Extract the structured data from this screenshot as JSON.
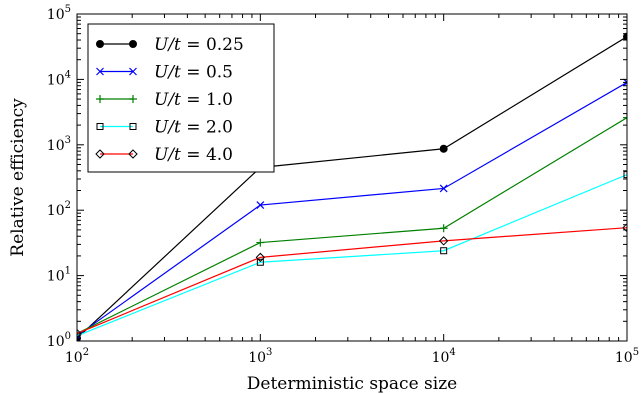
{
  "chart_data": {
    "type": "line",
    "xscale": "log",
    "yscale": "log",
    "xlim": [
      100,
      100000
    ],
    "ylim": [
      1,
      100000
    ],
    "xlabel": "Deterministic space size",
    "ylabel": "Relative efficiency",
    "x_ticks": [
      {
        "base": "10",
        "exp": "2",
        "value": 100
      },
      {
        "base": "10",
        "exp": "3",
        "value": 1000
      },
      {
        "base": "10",
        "exp": "4",
        "value": 10000
      },
      {
        "base": "10",
        "exp": "5",
        "value": 100000
      }
    ],
    "y_ticks": [
      {
        "base": "10",
        "exp": "0",
        "value": 1
      },
      {
        "base": "10",
        "exp": "1",
        "value": 10
      },
      {
        "base": "10",
        "exp": "2",
        "value": 100
      },
      {
        "base": "10",
        "exp": "3",
        "value": 1000
      },
      {
        "base": "10",
        "exp": "4",
        "value": 10000
      },
      {
        "base": "10",
        "exp": "5",
        "value": 100000
      }
    ],
    "grid": false,
    "legend_position": "top-left",
    "series": [
      {
        "name": "U/t = 0.25",
        "var": "U/t",
        "val": "0.25",
        "color": "#000000",
        "marker": "circle",
        "x": [
          100,
          1000,
          10000,
          100000
        ],
        "y": [
          1.1,
          450,
          870,
          45000
        ]
      },
      {
        "name": "U/t = 0.5",
        "var": "U/t",
        "val": "0.5",
        "color": "#0000ff",
        "marker": "x",
        "x": [
          100,
          1000,
          10000,
          100000
        ],
        "y": [
          1.2,
          120,
          215,
          9000
        ]
      },
      {
        "name": "U/t = 1.0",
        "var": "U/t",
        "val": "1.0",
        "color": "#008000",
        "marker": "plus",
        "x": [
          100,
          1000,
          10000,
          100000
        ],
        "y": [
          1.3,
          32,
          53,
          2600
        ]
      },
      {
        "name": "U/t = 2.0",
        "var": "U/t",
        "val": "2.0",
        "color": "#00ffff",
        "marker": "square",
        "x": [
          100,
          1000,
          10000,
          100000
        ],
        "y": [
          1.2,
          16,
          24,
          350
        ]
      },
      {
        "name": "U/t = 4.0",
        "var": "U/t",
        "val": "4.0",
        "color": "#ff0000",
        "marker": "diamond",
        "x": [
          100,
          1000,
          10000,
          100000
        ],
        "y": [
          1.3,
          19,
          34,
          54
        ]
      }
    ]
  }
}
